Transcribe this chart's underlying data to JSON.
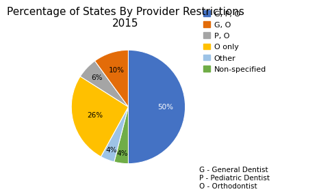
{
  "title": "Percentage of States By Provider Restrictions\n2015",
  "title_fontsize": 11,
  "plot_values": [
    50,
    4,
    4,
    26,
    6,
    10
  ],
  "plot_colors": [
    "#4472C4",
    "#70AD47",
    "#9DC3E6",
    "#FFC000",
    "#A5A5A5",
    "#E36C09"
  ],
  "autopct_texts": [
    "50%",
    "4%",
    "4%",
    "26%",
    "6%",
    "10%"
  ],
  "autopct_radii": [
    0.65,
    0.82,
    0.82,
    0.6,
    0.75,
    0.68
  ],
  "text_colors": [
    "white",
    "black",
    "black",
    "black",
    "black",
    "black"
  ],
  "legend_colors": [
    "#4472C4",
    "#E36C09",
    "#A5A5A5",
    "#FFC000",
    "#9DC3E6",
    "#70AD47"
  ],
  "legend_labels": [
    "G, P, O",
    "G, O",
    "P, O",
    "O only",
    "Other",
    "Non-specified"
  ],
  "legend_fontsize": 8,
  "footnote": "G - General Dentist\nP - Pediatric Dentist\nO - Orthodontist",
  "footnote_fontsize": 7.5,
  "background_color": "#ffffff",
  "startangle": 90
}
